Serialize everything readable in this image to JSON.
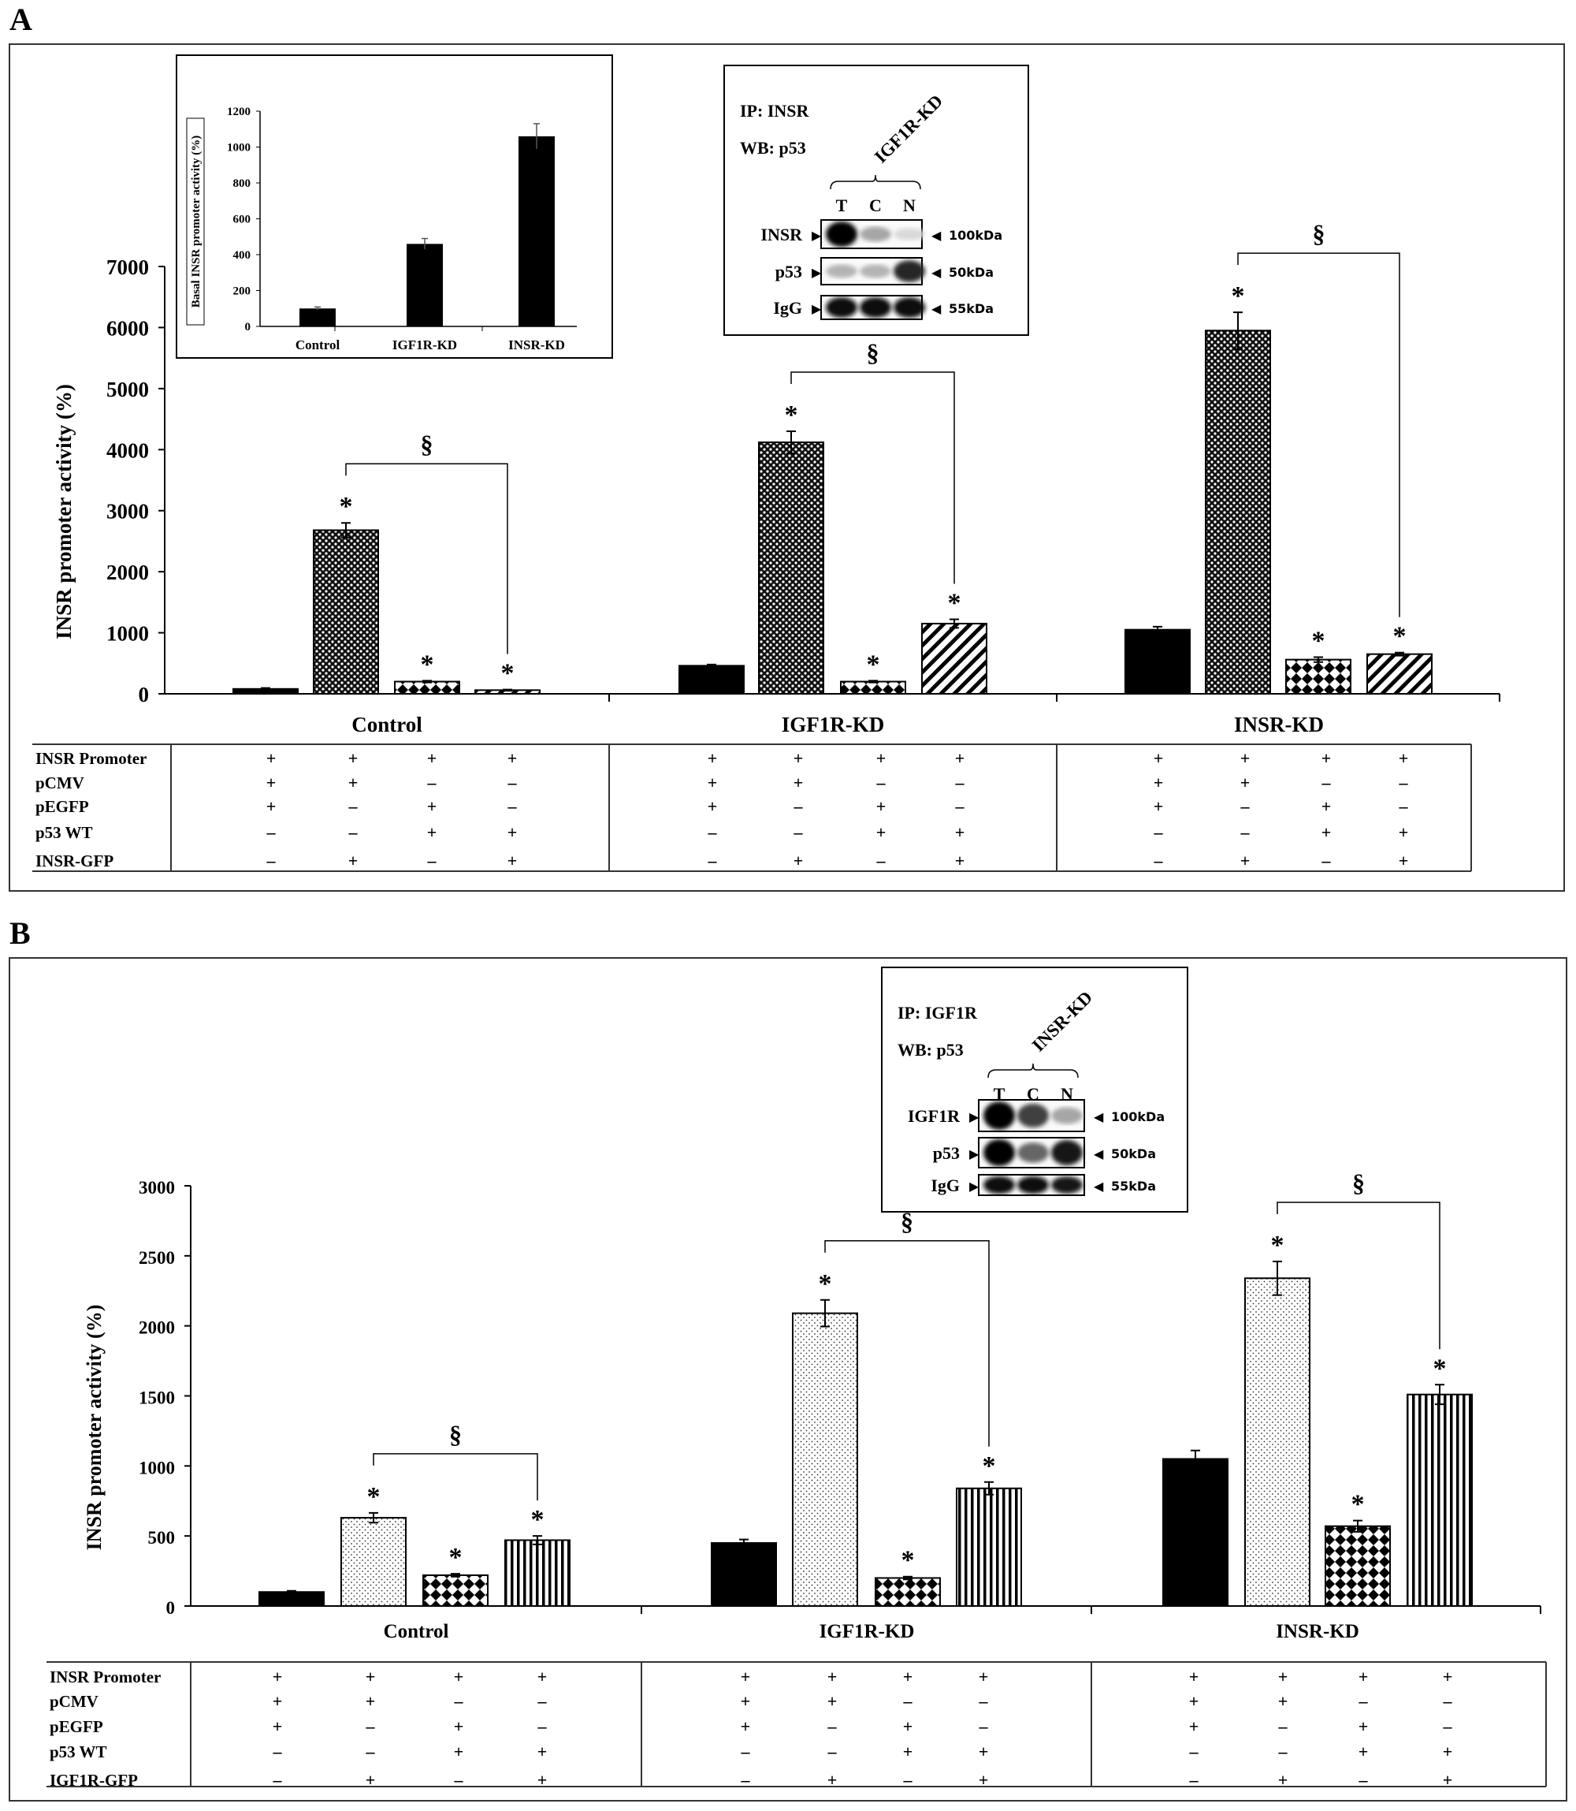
{
  "panels": [
    {
      "label": "A",
      "chart_data": {
        "type": "bar",
        "ylabel": "INSR promoter activity (%)",
        "ylim": [
          0,
          7000
        ],
        "yticks": [
          0,
          1000,
          2000,
          3000,
          4000,
          5000,
          6000,
          7000
        ],
        "categories": [
          "Control",
          "IGF1R-KD",
          "INSR-KD"
        ],
        "series": [
          {
            "values": [
              80,
              460,
              1050
            ],
            "errors": [
              15,
              20,
              50
            ],
            "pattern": "solid-black",
            "significant": [
              false,
              false,
              false
            ]
          },
          {
            "values": [
              2680,
              4120,
              5950
            ],
            "errors": [
              120,
              180,
              300
            ],
            "pattern": "dense-checker-dots",
            "significant": [
              true,
              true,
              true
            ]
          },
          {
            "values": [
              200,
              200,
              560
            ],
            "errors": [
              15,
              15,
              40
            ],
            "pattern": "diamond-checker",
            "significant": [
              true,
              true,
              true
            ]
          },
          {
            "values": [
              60,
              1150,
              650
            ],
            "errors": [
              10,
              70,
              25
            ],
            "pattern": "diagonal-stripes",
            "significant": [
              true,
              true,
              true
            ]
          }
        ],
        "significance_marker": "*",
        "bracket_marker": "§",
        "brackets": [
          {
            "group": 0,
            "from_series": 1,
            "to_series": 3
          },
          {
            "group": 1,
            "from_series": 1,
            "to_series": 3
          },
          {
            "group": 2,
            "from_series": 1,
            "to_series": 3
          }
        ]
      },
      "inset_chart": {
        "type": "bar",
        "ylabel": "Basal INSR promoter activity (%)",
        "ylim": [
          0,
          1200
        ],
        "yticks": [
          0,
          200,
          400,
          600,
          800,
          1000,
          1200
        ],
        "categories": [
          "Control",
          "IGF1R-KD",
          "INSR-KD"
        ],
        "values": [
          100,
          460,
          1060
        ],
        "errors": [
          8,
          30,
          70
        ]
      },
      "blot": {
        "ip": "IP: INSR",
        "wb": "WB: p53",
        "group": "IGF1R-KD",
        "lanes": [
          "T",
          "C",
          "N"
        ],
        "rows": [
          {
            "label": "INSR",
            "size": "100kDa",
            "intensity": [
              1.0,
              0.35,
              0.15
            ]
          },
          {
            "label": "p53",
            "size": "50kDa",
            "intensity": [
              0.3,
              0.3,
              0.85
            ]
          },
          {
            "label": "IgG",
            "size": "55kDa",
            "intensity": [
              0.95,
              0.95,
              0.95
            ]
          }
        ]
      },
      "table": {
        "rows": [
          {
            "label": "INSR Promoter",
            "cells": [
              "+",
              "+",
              "+",
              "+",
              "+",
              "+",
              "+",
              "+",
              "+",
              "+",
              "+",
              "+"
            ]
          },
          {
            "label": "pCMV",
            "cells": [
              "+",
              "+",
              "–",
              "–",
              "+",
              "+",
              "–",
              "–",
              "+",
              "+",
              "–",
              "–"
            ]
          },
          {
            "label": "pEGFP",
            "cells": [
              "+",
              "–",
              "+",
              "–",
              "+",
              "–",
              "+",
              "–",
              "+",
              "–",
              "+",
              "–"
            ]
          },
          {
            "label": "p53 WT",
            "cells": [
              "–",
              "–",
              "+",
              "+",
              "–",
              "–",
              "+",
              "+",
              "–",
              "–",
              "+",
              "+"
            ]
          },
          {
            "label": "INSR-GFP",
            "cells": [
              "–",
              "+",
              "–",
              "+",
              "–",
              "+",
              "–",
              "+",
              "–",
              "+",
              "–",
              "+"
            ]
          }
        ]
      }
    },
    {
      "label": "B",
      "chart_data": {
        "type": "bar",
        "ylabel": "INSR promoter activity (%)",
        "ylim": [
          0,
          3000
        ],
        "yticks": [
          0,
          500,
          1000,
          1500,
          2000,
          2500,
          3000
        ],
        "categories": [
          "Control",
          "IGF1R-KD",
          "INSR-KD"
        ],
        "series": [
          {
            "values": [
              100,
              450,
              1050
            ],
            "errors": [
              8,
              25,
              60
            ],
            "pattern": "solid-black",
            "significant": [
              false,
              false,
              false
            ]
          },
          {
            "values": [
              630,
              2090,
              2340
            ],
            "errors": [
              35,
              95,
              120
            ],
            "pattern": "light-dots",
            "significant": [
              true,
              true,
              true
            ]
          },
          {
            "values": [
              220,
              200,
              570
            ],
            "errors": [
              10,
              10,
              40
            ],
            "pattern": "diamond-checker",
            "significant": [
              true,
              true,
              true
            ]
          },
          {
            "values": [
              470,
              840,
              1510
            ],
            "errors": [
              30,
              45,
              70
            ],
            "pattern": "vertical-stripes",
            "significant": [
              true,
              true,
              true
            ]
          }
        ],
        "significance_marker": "*",
        "bracket_marker": "§",
        "brackets": [
          {
            "group": 0,
            "from_series": 1,
            "to_series": 3
          },
          {
            "group": 1,
            "from_series": 1,
            "to_series": 3
          },
          {
            "group": 2,
            "from_series": 1,
            "to_series": 3
          }
        ]
      },
      "blot": {
        "ip": "IP: IGF1R",
        "wb": "WB: p53",
        "group": "INSR-KD",
        "lanes": [
          "T",
          "C",
          "N"
        ],
        "rows": [
          {
            "label": "IGF1R",
            "size": "100kDa",
            "intensity": [
              1.0,
              0.75,
              0.35
            ]
          },
          {
            "label": "p53",
            "size": "50kDa",
            "intensity": [
              1.0,
              0.6,
              0.9
            ]
          },
          {
            "label": "IgG",
            "size": "55kDa",
            "intensity": [
              0.95,
              0.95,
              0.9
            ]
          }
        ]
      },
      "table": {
        "rows": [
          {
            "label": "INSR Promoter",
            "cells": [
              "+",
              "+",
              "+",
              "+",
              "+",
              "+",
              "+",
              "+",
              "+",
              "+",
              "+",
              "+"
            ]
          },
          {
            "label": "pCMV",
            "cells": [
              "+",
              "+",
              "–",
              "–",
              "+",
              "+",
              "–",
              "–",
              "+",
              "+",
              "–",
              "–"
            ]
          },
          {
            "label": "pEGFP",
            "cells": [
              "+",
              "–",
              "+",
              "–",
              "+",
              "–",
              "+",
              "–",
              "+",
              "–",
              "+",
              "–"
            ]
          },
          {
            "label": "p53 WT",
            "cells": [
              "–",
              "–",
              "+",
              "+",
              "–",
              "–",
              "+",
              "+",
              "–",
              "–",
              "+",
              "+"
            ]
          },
          {
            "label": "IGF1R-GFP",
            "cells": [
              "–",
              "+",
              "–",
              "+",
              "–",
              "+",
              "–",
              "+",
              "–",
              "+",
              "–",
              "+"
            ]
          }
        ]
      }
    }
  ]
}
